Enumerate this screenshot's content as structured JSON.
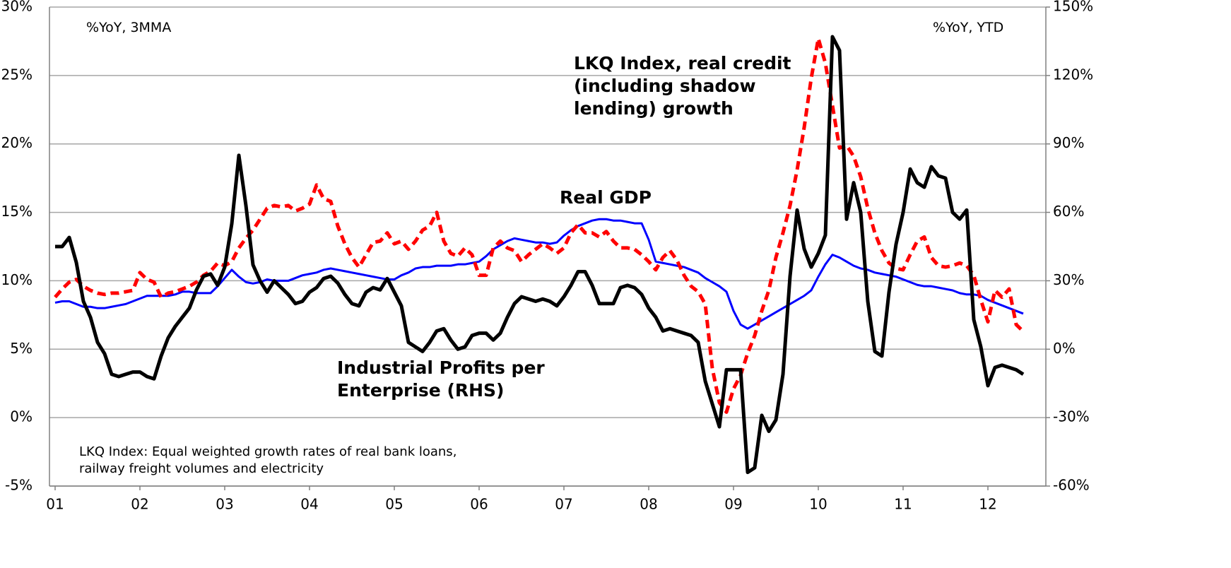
{
  "chart_data": {
    "type": "line",
    "annotations": {
      "left_unit": "%YoY, 3MMA",
      "right_unit": "%YoY, YTD",
      "footnote": "LKQ Index: Equal weighted growth rates of  real bank loans, railway freight volumes and electricity"
    },
    "categories": [
      "01",
      null,
      null,
      null,
      null,
      null,
      null,
      null,
      null,
      null,
      null,
      null,
      "02",
      null,
      null,
      null,
      null,
      null,
      null,
      null,
      null,
      null,
      null,
      null,
      "03",
      null,
      null,
      null,
      null,
      null,
      null,
      null,
      null,
      null,
      null,
      null,
      "04",
      null,
      null,
      null,
      null,
      null,
      null,
      null,
      null,
      null,
      null,
      null,
      "05",
      null,
      null,
      null,
      null,
      null,
      null,
      null,
      null,
      null,
      null,
      null,
      "06",
      null,
      null,
      null,
      null,
      null,
      null,
      null,
      null,
      null,
      null,
      null,
      "07",
      null,
      null,
      null,
      null,
      null,
      null,
      null,
      null,
      null,
      null,
      null,
      "08",
      null,
      null,
      null,
      null,
      null,
      null,
      null,
      null,
      null,
      null,
      null,
      "09",
      null,
      null,
      null,
      null,
      null,
      null,
      null,
      null,
      null,
      null,
      null,
      "10",
      null,
      null,
      null,
      null,
      null,
      null,
      null,
      null,
      null,
      null,
      null,
      "11",
      null,
      null,
      null,
      null,
      null,
      null,
      null,
      null,
      null,
      null,
      null,
      "12",
      null,
      null,
      null,
      null,
      null
    ],
    "series": [
      {
        "name": "Industrial Profits per Enterprise (RHS)",
        "color": "#000000",
        "axis": "y2",
        "dash": false,
        "width": 5,
        "values": [
          45,
          45,
          49,
          38,
          21,
          14,
          3,
          -2,
          -11,
          -12,
          -11,
          -10,
          -10,
          -12,
          -13,
          -3,
          5,
          10,
          14,
          18,
          26,
          32,
          33,
          28,
          36,
          55,
          85,
          63,
          37,
          30,
          25,
          30,
          27,
          24,
          20,
          21,
          25,
          27,
          31,
          32,
          29,
          24,
          20,
          19,
          25,
          27,
          26,
          31,
          25,
          19,
          3,
          1,
          -1,
          3,
          8,
          9,
          4,
          0,
          1,
          6,
          7,
          7,
          4,
          7,
          14,
          20,
          23,
          22,
          21,
          22,
          21,
          19,
          23,
          28,
          34,
          34,
          28,
          20,
          20,
          20,
          27,
          28,
          27,
          24,
          18,
          14,
          8,
          9,
          8,
          7,
          6,
          3,
          -14,
          -24,
          -34,
          -9,
          -9,
          -9,
          -54,
          -52,
          -29,
          -36,
          -31,
          -11,
          32,
          61,
          44,
          36,
          42,
          50,
          137,
          131,
          57,
          73,
          60,
          21,
          -1,
          -3,
          25,
          46,
          60,
          79,
          73,
          71,
          80,
          76,
          75,
          60,
          57,
          61,
          13,
          1,
          -16,
          -8,
          -7,
          -8,
          -9,
          -11
        ]
      },
      {
        "name": "LKQ Index, real credit (including shadow lending) growth",
        "color": "#ff0000",
        "axis": "y",
        "dash": true,
        "width": 5,
        "values": [
          8.8,
          9.4,
          9.9,
          10.1,
          9.6,
          9.3,
          9.1,
          9.0,
          9.1,
          9.1,
          9.2,
          9.3,
          10.6,
          10.1,
          9.9,
          8.8,
          9.1,
          9.2,
          9.4,
          9.6,
          9.9,
          10.4,
          10.7,
          11.3,
          11.1,
          11.4,
          12.4,
          13.1,
          13.7,
          14.5,
          15.3,
          15.5,
          15.4,
          15.5,
          15.1,
          15.3,
          15.6,
          17.0,
          16.0,
          15.8,
          14.0,
          12.7,
          11.7,
          11.0,
          11.9,
          12.8,
          12.9,
          13.5,
          12.7,
          12.9,
          12.3,
          12.9,
          13.7,
          14.0,
          15.0,
          12.9,
          12.0,
          11.8,
          12.4,
          11.9,
          10.4,
          10.4,
          12.4,
          12.9,
          12.4,
          12.2,
          11.4,
          11.9,
          12.3,
          12.7,
          12.4,
          12.0,
          12.4,
          13.5,
          14.1,
          13.5,
          13.5,
          13.2,
          13.6,
          12.9,
          12.4,
          12.4,
          12.3,
          11.9,
          11.4,
          10.8,
          11.7,
          12.2,
          11.5,
          10.4,
          9.6,
          9.2,
          8.3,
          3.6,
          1.1,
          0.4,
          2.1,
          3.1,
          4.7,
          6.0,
          7.8,
          9.3,
          11.7,
          13.5,
          15.5,
          18.1,
          21.2,
          24.8,
          27.7,
          25.9,
          22.8,
          19.7,
          19.9,
          19.1,
          17.6,
          15.3,
          13.5,
          12.2,
          11.3,
          10.9,
          10.8,
          11.9,
          12.9,
          13.2,
          11.7,
          11.1,
          11.0,
          11.1,
          11.3,
          11.1,
          10.4,
          8.6,
          7.0,
          9.3,
          8.8,
          9.4,
          6.8,
          6.3
        ]
      },
      {
        "name": "Real GDP",
        "color": "#0000ff",
        "axis": "y",
        "dash": false,
        "width": 3,
        "values": [
          8.4,
          8.5,
          8.5,
          8.3,
          8.1,
          8.1,
          8.0,
          8.0,
          8.1,
          8.2,
          8.3,
          8.5,
          8.7,
          8.9,
          8.9,
          8.9,
          8.9,
          9.0,
          9.2,
          9.2,
          9.1,
          9.1,
          9.1,
          9.6,
          10.2,
          10.8,
          10.3,
          9.9,
          9.8,
          9.9,
          10.1,
          10.0,
          10.0,
          10.0,
          10.2,
          10.4,
          10.5,
          10.6,
          10.8,
          10.9,
          10.8,
          10.7,
          10.6,
          10.5,
          10.4,
          10.3,
          10.2,
          10.1,
          10.1,
          10.4,
          10.6,
          10.9,
          11.0,
          11.0,
          11.1,
          11.1,
          11.1,
          11.2,
          11.2,
          11.3,
          11.4,
          11.8,
          12.3,
          12.6,
          12.9,
          13.1,
          13.0,
          12.9,
          12.8,
          12.8,
          12.7,
          12.8,
          13.3,
          13.7,
          14.0,
          14.2,
          14.4,
          14.5,
          14.5,
          14.4,
          14.4,
          14.3,
          14.2,
          14.2,
          13.0,
          11.4,
          11.3,
          11.2,
          11.1,
          11.0,
          10.8,
          10.6,
          10.2,
          9.9,
          9.6,
          9.2,
          7.8,
          6.8,
          6.5,
          6.8,
          7.1,
          7.4,
          7.7,
          8.0,
          8.3,
          8.6,
          8.9,
          9.3,
          10.3,
          11.2,
          11.9,
          11.7,
          11.4,
          11.1,
          10.9,
          10.8,
          10.6,
          10.5,
          10.4,
          10.3,
          10.1,
          9.9,
          9.7,
          9.6,
          9.6,
          9.5,
          9.4,
          9.3,
          9.1,
          9.0,
          9.0,
          8.9,
          8.6,
          8.4,
          8.2,
          8.0,
          7.8,
          7.6
        ]
      }
    ],
    "ylim": [
      -5,
      30
    ],
    "yticks": [
      {
        "value": -5,
        "label": "-5%"
      },
      {
        "value": 0,
        "label": "0%"
      },
      {
        "value": 5,
        "label": "5%"
      },
      {
        "value": 10,
        "label": "10%"
      },
      {
        "value": 15,
        "label": "15%"
      },
      {
        "value": 20,
        "label": "20%"
      },
      {
        "value": 25,
        "label": "25%"
      },
      {
        "value": 30,
        "label": "30%"
      }
    ],
    "y2lim": [
      -60,
      150
    ],
    "y2ticks": [
      {
        "value": -60,
        "label": "-60%"
      },
      {
        "value": -30,
        "label": "-30%"
      },
      {
        "value": 0,
        "label": "0%"
      },
      {
        "value": 30,
        "label": "30%"
      },
      {
        "value": 60,
        "label": "60%"
      },
      {
        "value": 90,
        "label": "90%"
      },
      {
        "value": 120,
        "label": "120%"
      },
      {
        "value": 150,
        "label": "150%"
      }
    ],
    "grid": true
  }
}
